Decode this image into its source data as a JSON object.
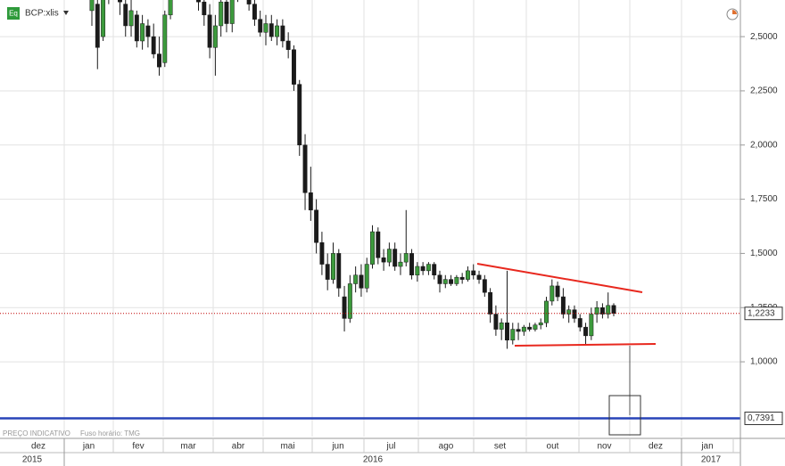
{
  "header": {
    "icon": "Eq",
    "symbol": "BCP:xlis"
  },
  "footer": {
    "note": "PREÇO INDICATIVO",
    "timezone": "Fuso horário: TMG"
  },
  "chart_data": {
    "type": "candlestick",
    "months": [
      "dez",
      "jan",
      "fev",
      "mar",
      "abr",
      "mai",
      "jun",
      "jul",
      "ago",
      "set",
      "out",
      "nov",
      "dez",
      "jan"
    ],
    "years": [
      "2015",
      "2016",
      "2017"
    ],
    "up_color": "#3c9a3c",
    "down_color": "#1a1a1a",
    "grid": true,
    "ylim": [
      0.655,
      2.669
    ],
    "yticks": [
      {
        "value": 1.0,
        "label": "1,0000"
      },
      {
        "value": 1.25,
        "label": "1,2500"
      },
      {
        "value": 1.5,
        "label": "1,5000"
      },
      {
        "value": 1.75,
        "label": "1,7500"
      },
      {
        "value": 2.0,
        "label": "2,0000"
      },
      {
        "value": 2.25,
        "label": "2,2500"
      },
      {
        "value": 2.5,
        "label": "2,5000"
      }
    ],
    "price_lines": [
      {
        "value": 1.2233,
        "label": "1,2233",
        "color": "#c00000"
      },
      {
        "value": 0.7391,
        "label": "0,7391",
        "color": "#2844b8"
      }
    ],
    "candles": [
      [
        2.62,
        2.72,
        2.55,
        2.68
      ],
      [
        2.65,
        2.68,
        2.35,
        2.45
      ],
      [
        2.5,
        2.72,
        2.48,
        2.7
      ],
      [
        2.72,
        2.78,
        2.65,
        2.75
      ],
      [
        2.74,
        2.8,
        2.68,
        2.72
      ],
      [
        2.7,
        2.75,
        2.6,
        2.66
      ],
      [
        2.65,
        2.7,
        2.5,
        2.55
      ],
      [
        2.55,
        2.68,
        2.5,
        2.62
      ],
      [
        2.6,
        2.62,
        2.45,
        2.48
      ],
      [
        2.48,
        2.6,
        2.44,
        2.56
      ],
      [
        2.55,
        2.58,
        2.45,
        2.5
      ],
      [
        2.5,
        2.56,
        2.4,
        2.42
      ],
      [
        2.42,
        2.5,
        2.32,
        2.36
      ],
      [
        2.38,
        2.62,
        2.36,
        2.6
      ],
      [
        2.6,
        2.72,
        2.58,
        2.7
      ],
      [
        2.72,
        2.82,
        2.7,
        2.8
      ],
      [
        2.8,
        2.86,
        2.74,
        2.78
      ],
      [
        2.78,
        2.84,
        2.72,
        2.82
      ],
      [
        2.8,
        2.85,
        2.72,
        2.76
      ],
      [
        2.76,
        2.8,
        2.62,
        2.66
      ],
      [
        2.66,
        2.7,
        2.55,
        2.6
      ],
      [
        2.6,
        2.65,
        2.4,
        2.45
      ],
      [
        2.45,
        2.6,
        2.32,
        2.55
      ],
      [
        2.55,
        2.7,
        2.5,
        2.66
      ],
      [
        2.66,
        2.72,
        2.52,
        2.56
      ],
      [
        2.56,
        2.7,
        2.52,
        2.68
      ],
      [
        2.7,
        2.8,
        2.66,
        2.76
      ],
      [
        2.76,
        2.82,
        2.72,
        2.8
      ],
      [
        2.78,
        2.8,
        2.62,
        2.65
      ],
      [
        2.65,
        2.68,
        2.55,
        2.58
      ],
      [
        2.58,
        2.62,
        2.5,
        2.52
      ],
      [
        2.52,
        2.6,
        2.46,
        2.56
      ],
      [
        2.56,
        2.6,
        2.48,
        2.5
      ],
      [
        2.5,
        2.58,
        2.46,
        2.55
      ],
      [
        2.55,
        2.58,
        2.45,
        2.48
      ],
      [
        2.48,
        2.52,
        2.4,
        2.44
      ],
      [
        2.44,
        2.46,
        2.25,
        2.28
      ],
      [
        2.28,
        2.3,
        1.95,
        2.0
      ],
      [
        2.0,
        2.05,
        1.7,
        1.78
      ],
      [
        1.78,
        1.9,
        1.65,
        1.7
      ],
      [
        1.7,
        1.75,
        1.5,
        1.55
      ],
      [
        1.55,
        1.6,
        1.4,
        1.45
      ],
      [
        1.45,
        1.5,
        1.33,
        1.38
      ],
      [
        1.38,
        1.55,
        1.36,
        1.5
      ],
      [
        1.5,
        1.52,
        1.3,
        1.34
      ],
      [
        1.3,
        1.35,
        1.14,
        1.2
      ],
      [
        1.2,
        1.4,
        1.18,
        1.36
      ],
      [
        1.36,
        1.44,
        1.32,
        1.4
      ],
      [
        1.4,
        1.45,
        1.3,
        1.34
      ],
      [
        1.34,
        1.48,
        1.32,
        1.45
      ],
      [
        1.45,
        1.63,
        1.43,
        1.6
      ],
      [
        1.6,
        1.62,
        1.45,
        1.48
      ],
      [
        1.48,
        1.52,
        1.42,
        1.46
      ],
      [
        1.46,
        1.55,
        1.44,
        1.52
      ],
      [
        1.52,
        1.55,
        1.42,
        1.44
      ],
      [
        1.44,
        1.5,
        1.4,
        1.46
      ],
      [
        1.46,
        1.7,
        1.44,
        1.5
      ],
      [
        1.5,
        1.52,
        1.38,
        1.4
      ],
      [
        1.4,
        1.46,
        1.37,
        1.44
      ],
      [
        1.44,
        1.46,
        1.4,
        1.42
      ],
      [
        1.42,
        1.46,
        1.4,
        1.45
      ],
      [
        1.45,
        1.46,
        1.38,
        1.4
      ],
      [
        1.4,
        1.42,
        1.32,
        1.36
      ],
      [
        1.36,
        1.4,
        1.34,
        1.38
      ],
      [
        1.38,
        1.4,
        1.35,
        1.36
      ],
      [
        1.36,
        1.4,
        1.35,
        1.39
      ],
      [
        1.39,
        1.41,
        1.36,
        1.38
      ],
      [
        1.38,
        1.44,
        1.37,
        1.42
      ],
      [
        1.42,
        1.45,
        1.38,
        1.4
      ],
      [
        1.4,
        1.42,
        1.36,
        1.38
      ],
      [
        1.38,
        1.4,
        1.3,
        1.32
      ],
      [
        1.32,
        1.34,
        1.18,
        1.22
      ],
      [
        1.22,
        1.26,
        1.12,
        1.15
      ],
      [
        1.15,
        1.2,
        1.1,
        1.18
      ],
      [
        1.18,
        1.42,
        1.06,
        1.1
      ],
      [
        1.1,
        1.18,
        1.08,
        1.15
      ],
      [
        1.15,
        1.18,
        1.1,
        1.14
      ],
      [
        1.14,
        1.17,
        1.12,
        1.16
      ],
      [
        1.16,
        1.18,
        1.14,
        1.15
      ],
      [
        1.15,
        1.18,
        1.14,
        1.17
      ],
      [
        1.17,
        1.2,
        1.15,
        1.18
      ],
      [
        1.18,
        1.3,
        1.16,
        1.28
      ],
      [
        1.28,
        1.38,
        1.26,
        1.35
      ],
      [
        1.35,
        1.37,
        1.28,
        1.3
      ],
      [
        1.3,
        1.34,
        1.2,
        1.22
      ],
      [
        1.22,
        1.26,
        1.18,
        1.24
      ],
      [
        1.24,
        1.26,
        1.18,
        1.2
      ],
      [
        1.2,
        1.22,
        1.14,
        1.16
      ],
      [
        1.16,
        1.18,
        1.08,
        1.12
      ],
      [
        1.12,
        1.25,
        1.1,
        1.22
      ],
      [
        1.22,
        1.28,
        1.18,
        1.25
      ],
      [
        1.25,
        1.27,
        1.2,
        1.22
      ],
      [
        1.22,
        1.32,
        1.2,
        1.26
      ],
      [
        1.26,
        1.27,
        1.21,
        1.2233
      ]
    ]
  }
}
